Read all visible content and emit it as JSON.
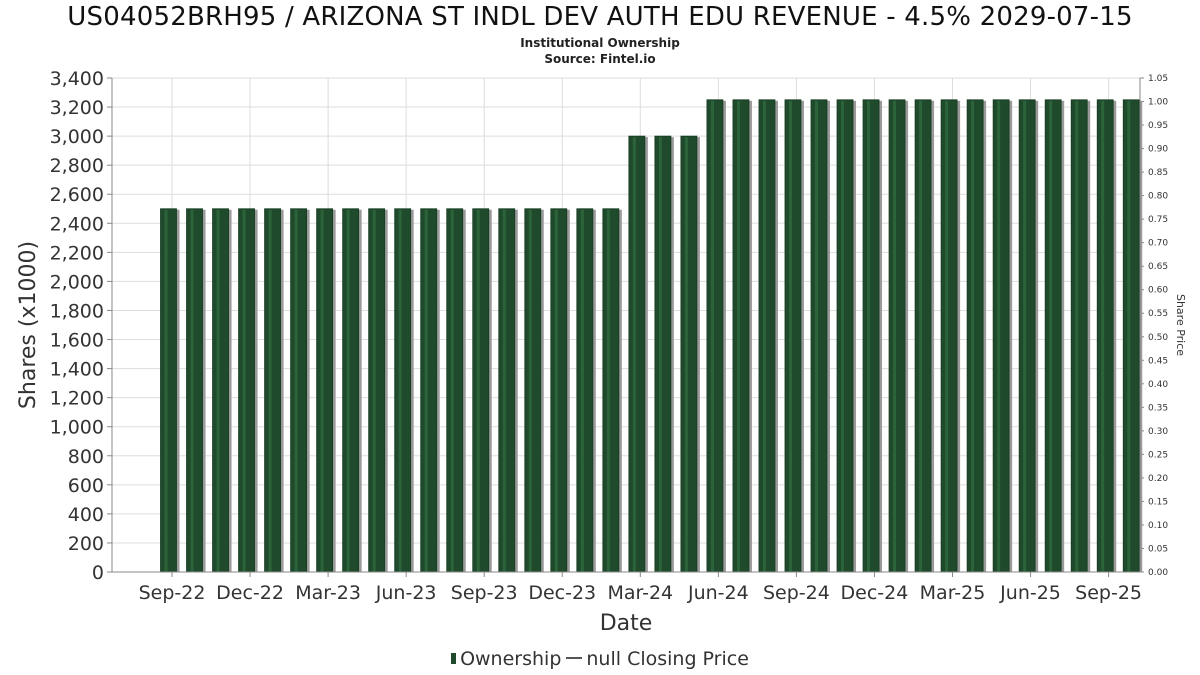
{
  "header": {
    "title": "US04052BRH95 / ARIZONA ST INDL DEV AUTH EDU REVENUE - 4.5% 2029-07-15",
    "subtitle": "Institutional Ownership",
    "source": "Source: Fintel.io"
  },
  "legend": {
    "ownership": "Ownership",
    "closing_price": "null Closing Price"
  },
  "colors": {
    "bar_fill": "#1f4a2c",
    "bar_highlight": "#2f6a3e",
    "bar_shadow": "#9a9a9a",
    "grid": "#dddddd",
    "axis": "#888888"
  },
  "chart_data": {
    "type": "bar",
    "title": "US04052BRH95 / ARIZONA ST INDL DEV AUTH EDU REVENUE - 4.5% 2029-07-15",
    "xlabel": "Date",
    "ylabel": "Shares (x1000)",
    "y2label": "Share Price",
    "ylim": [
      0,
      3400
    ],
    "y2lim": [
      0,
      1.05
    ],
    "yticks": [
      "0",
      "200",
      "400",
      "600",
      "800",
      "1,000",
      "1,200",
      "1,400",
      "1,600",
      "1,800",
      "2,000",
      "2,200",
      "2,400",
      "2,600",
      "2,800",
      "3,000",
      "3,200",
      "3,400"
    ],
    "y2ticks": [
      "0.00",
      "0.05",
      "0.10",
      "0.15",
      "0.20",
      "0.25",
      "0.30",
      "0.35",
      "0.40",
      "0.45",
      "0.50",
      "0.55",
      "0.60",
      "0.65",
      "0.70",
      "0.75",
      "0.80",
      "0.85",
      "0.90",
      "0.95",
      "1.00",
      "1.05"
    ],
    "xticks": [
      "Sep-22",
      "Dec-22",
      "Mar-23",
      "Jun-23",
      "Sep-23",
      "Dec-23",
      "Mar-24",
      "Jun-24",
      "Sep-24",
      "Dec-24",
      "Mar-25",
      "Jun-25",
      "Sep-25"
    ],
    "grid": true,
    "legend_position": "bottom",
    "series": [
      {
        "name": "Ownership",
        "values": [
          2500,
          2500,
          2500,
          2500,
          2500,
          2500,
          2500,
          2500,
          2500,
          2500,
          2500,
          2500,
          2500,
          2500,
          2500,
          2500,
          2500,
          2500,
          3000,
          3000,
          3000,
          3250,
          3250,
          3250,
          3250,
          3250,
          3250,
          3250,
          3250,
          3250,
          3250,
          3250,
          3250,
          3250,
          3250,
          3250,
          3250,
          3250
        ]
      }
    ]
  }
}
